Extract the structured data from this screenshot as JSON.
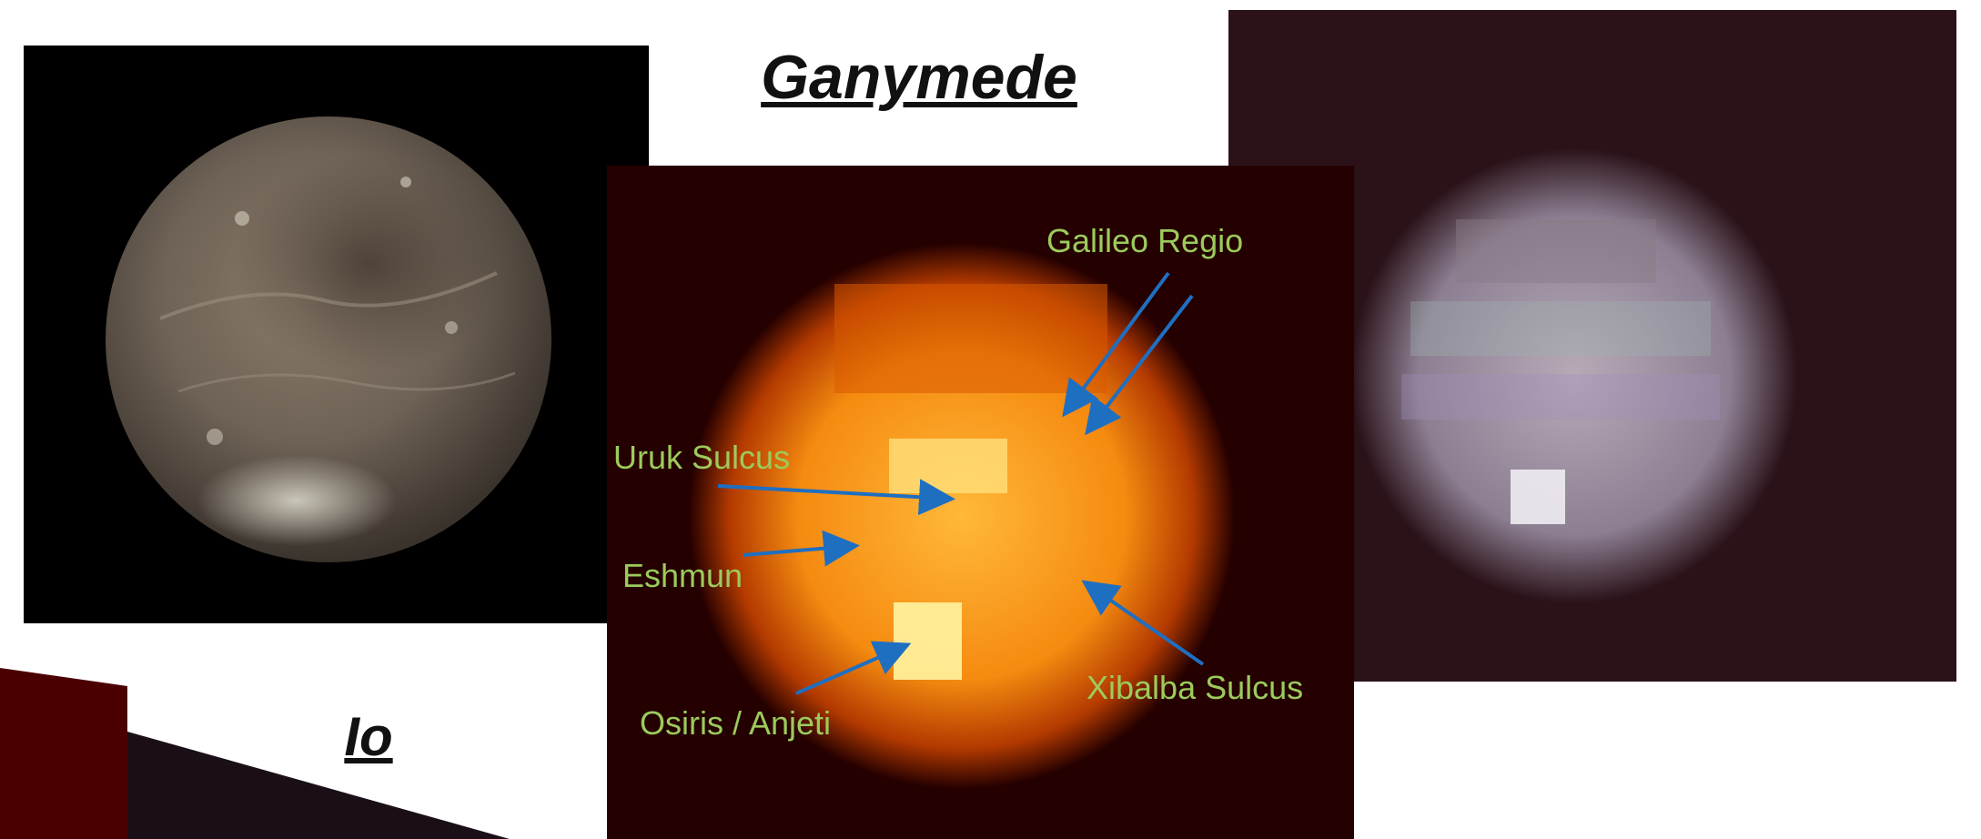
{
  "headings": {
    "ganymede": "Ganymede",
    "io": "Io"
  },
  "annotations": {
    "galileo_regio": "Galileo Regio",
    "uruk_sulcus": "Uruk Sulcus",
    "eshmun": "Eshmun",
    "osiris_anjeti": "Osiris / Anjeti",
    "xibalba_sulcus": "Xibalba Sulcus"
  },
  "colors": {
    "label_green": "#9ccb5c",
    "arrow_blue": "#1f6fc1",
    "heat_background": "#250000",
    "right_background": "#2b1219"
  }
}
